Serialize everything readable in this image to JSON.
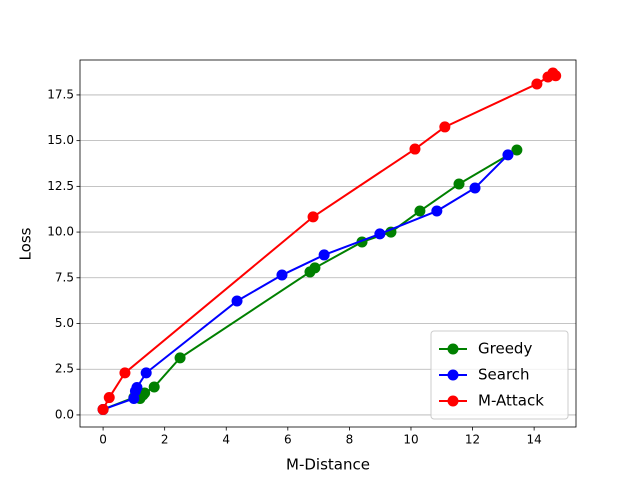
{
  "chart_data": {
    "type": "line",
    "xlabel": "M-Distance",
    "ylabel": "Loss",
    "xlim": [
      -0.75,
      15.36
    ],
    "ylim": [
      -0.66,
      19.41
    ],
    "xticks": [
      0,
      2,
      4,
      6,
      8,
      10,
      12,
      14
    ],
    "yticks": [
      {
        "value": 0,
        "label": "0.0"
      },
      {
        "value": 2.5,
        "label": "2.5"
      },
      {
        "value": 5,
        "label": "5.0"
      },
      {
        "value": 7.5,
        "label": "7.5"
      },
      {
        "value": 10,
        "label": "10.0"
      },
      {
        "value": 12.5,
        "label": "12.5"
      },
      {
        "value": 15,
        "label": "15.0"
      },
      {
        "value": 17.5,
        "label": "17.5"
      }
    ],
    "grid": "y",
    "legend": "lower right",
    "series": [
      {
        "name": "Greedy",
        "color": "#008000",
        "x": [
          0,
          1.0,
          1.2,
          1.3,
          1.35,
          1.66,
          2.5,
          6.72,
          6.88,
          8.41,
          9.35,
          10.29,
          11.56,
          13.44
        ],
        "values": [
          0.3,
          0.95,
          0.9,
          1.1,
          1.2,
          1.53,
          3.12,
          7.82,
          8.04,
          9.46,
          10.0,
          11.15,
          12.63,
          14.49
        ]
      },
      {
        "name": "Search",
        "color": "#0000ff",
        "x": [
          0,
          1.0,
          1.05,
          1.1,
          1.4,
          4.35,
          5.81,
          7.18,
          8.99,
          10.84,
          12.08,
          13.15
        ],
        "values": [
          0.3,
          0.9,
          1.3,
          1.5,
          2.3,
          6.23,
          7.65,
          8.75,
          9.9,
          11.15,
          12.41,
          14.22
        ]
      },
      {
        "name": "M-Attack",
        "color": "#ff0000",
        "x": [
          0,
          0.2,
          0.71,
          6.82,
          10.13,
          11.1,
          14.09,
          14.45,
          14.61,
          14.7
        ],
        "values": [
          0.3,
          0.95,
          2.3,
          10.83,
          14.54,
          15.75,
          18.1,
          18.48,
          18.7,
          18.55
        ]
      }
    ]
  }
}
